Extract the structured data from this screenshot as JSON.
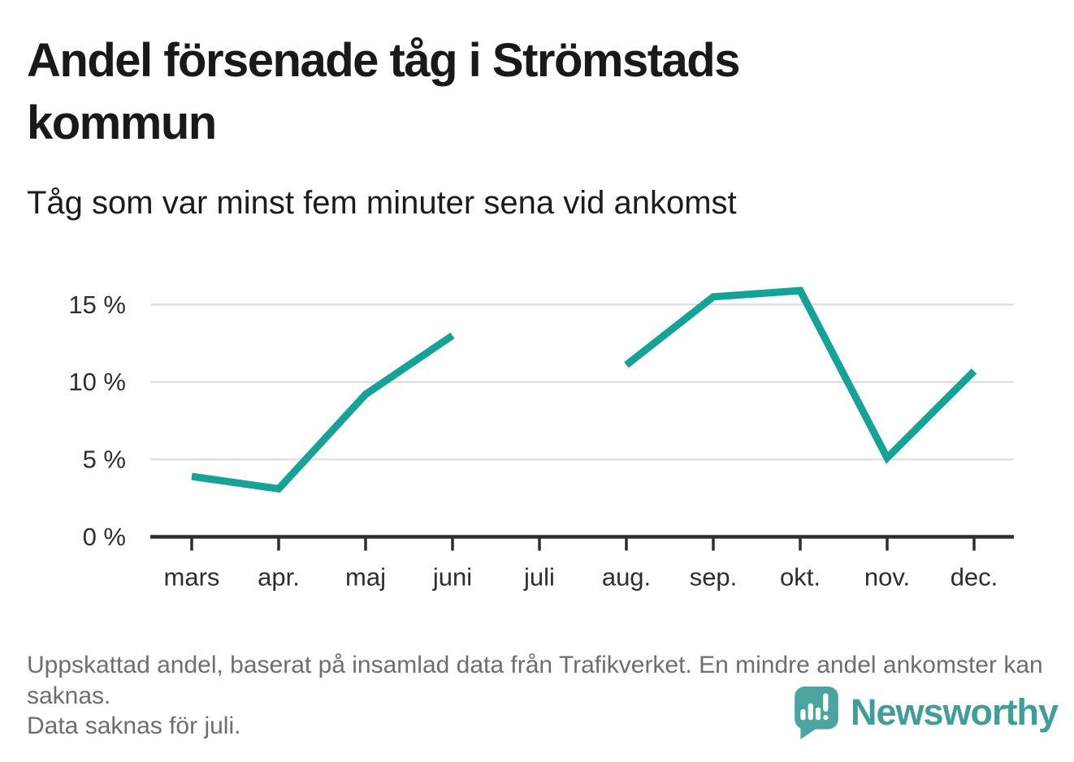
{
  "header": {
    "title": "Andel försenade tåg i Strömstads kommun",
    "subtitle": "Tåg som var minst fem minuter sena vid ankomst"
  },
  "notes": {
    "line1": "Uppskattad andel, baserat på insamlad data från Trafikverket. En mindre andel ankomster kan saknas.",
    "line2": "Data saknas för juli."
  },
  "branding": {
    "name": "Newsworthy",
    "icon": "newsworthy-pin-bar-chart-icon",
    "wordmark_color": "#3f9e9a",
    "pin_color": "#4ba4a0"
  },
  "chart_data": {
    "type": "line",
    "title": "Andel försenade tåg i Strömstads kommun",
    "subtitle": "Tåg som var minst fem minuter sena vid ankomst",
    "categories": [
      "mars",
      "apr.",
      "maj",
      "juni",
      "juli",
      "aug.",
      "sep.",
      "okt.",
      "nov.",
      "dec."
    ],
    "series": [
      {
        "name": "Andel försenade tåg",
        "values": [
          3.9,
          3.1,
          9.2,
          13.0,
          null,
          11.1,
          15.5,
          15.9,
          5.1,
          10.7
        ]
      }
    ],
    "unit": "%",
    "xlabel": "",
    "ylabel": "",
    "ylim": [
      0,
      17
    ],
    "yticks": [
      {
        "value": 0,
        "label": "0 %"
      },
      {
        "value": 5,
        "label": "5 %"
      },
      {
        "value": 10,
        "label": "10 %"
      },
      {
        "value": 15,
        "label": "15 %"
      }
    ],
    "grid": true,
    "legend": "none",
    "line_color": "#14a396",
    "missing_data": "juli"
  }
}
